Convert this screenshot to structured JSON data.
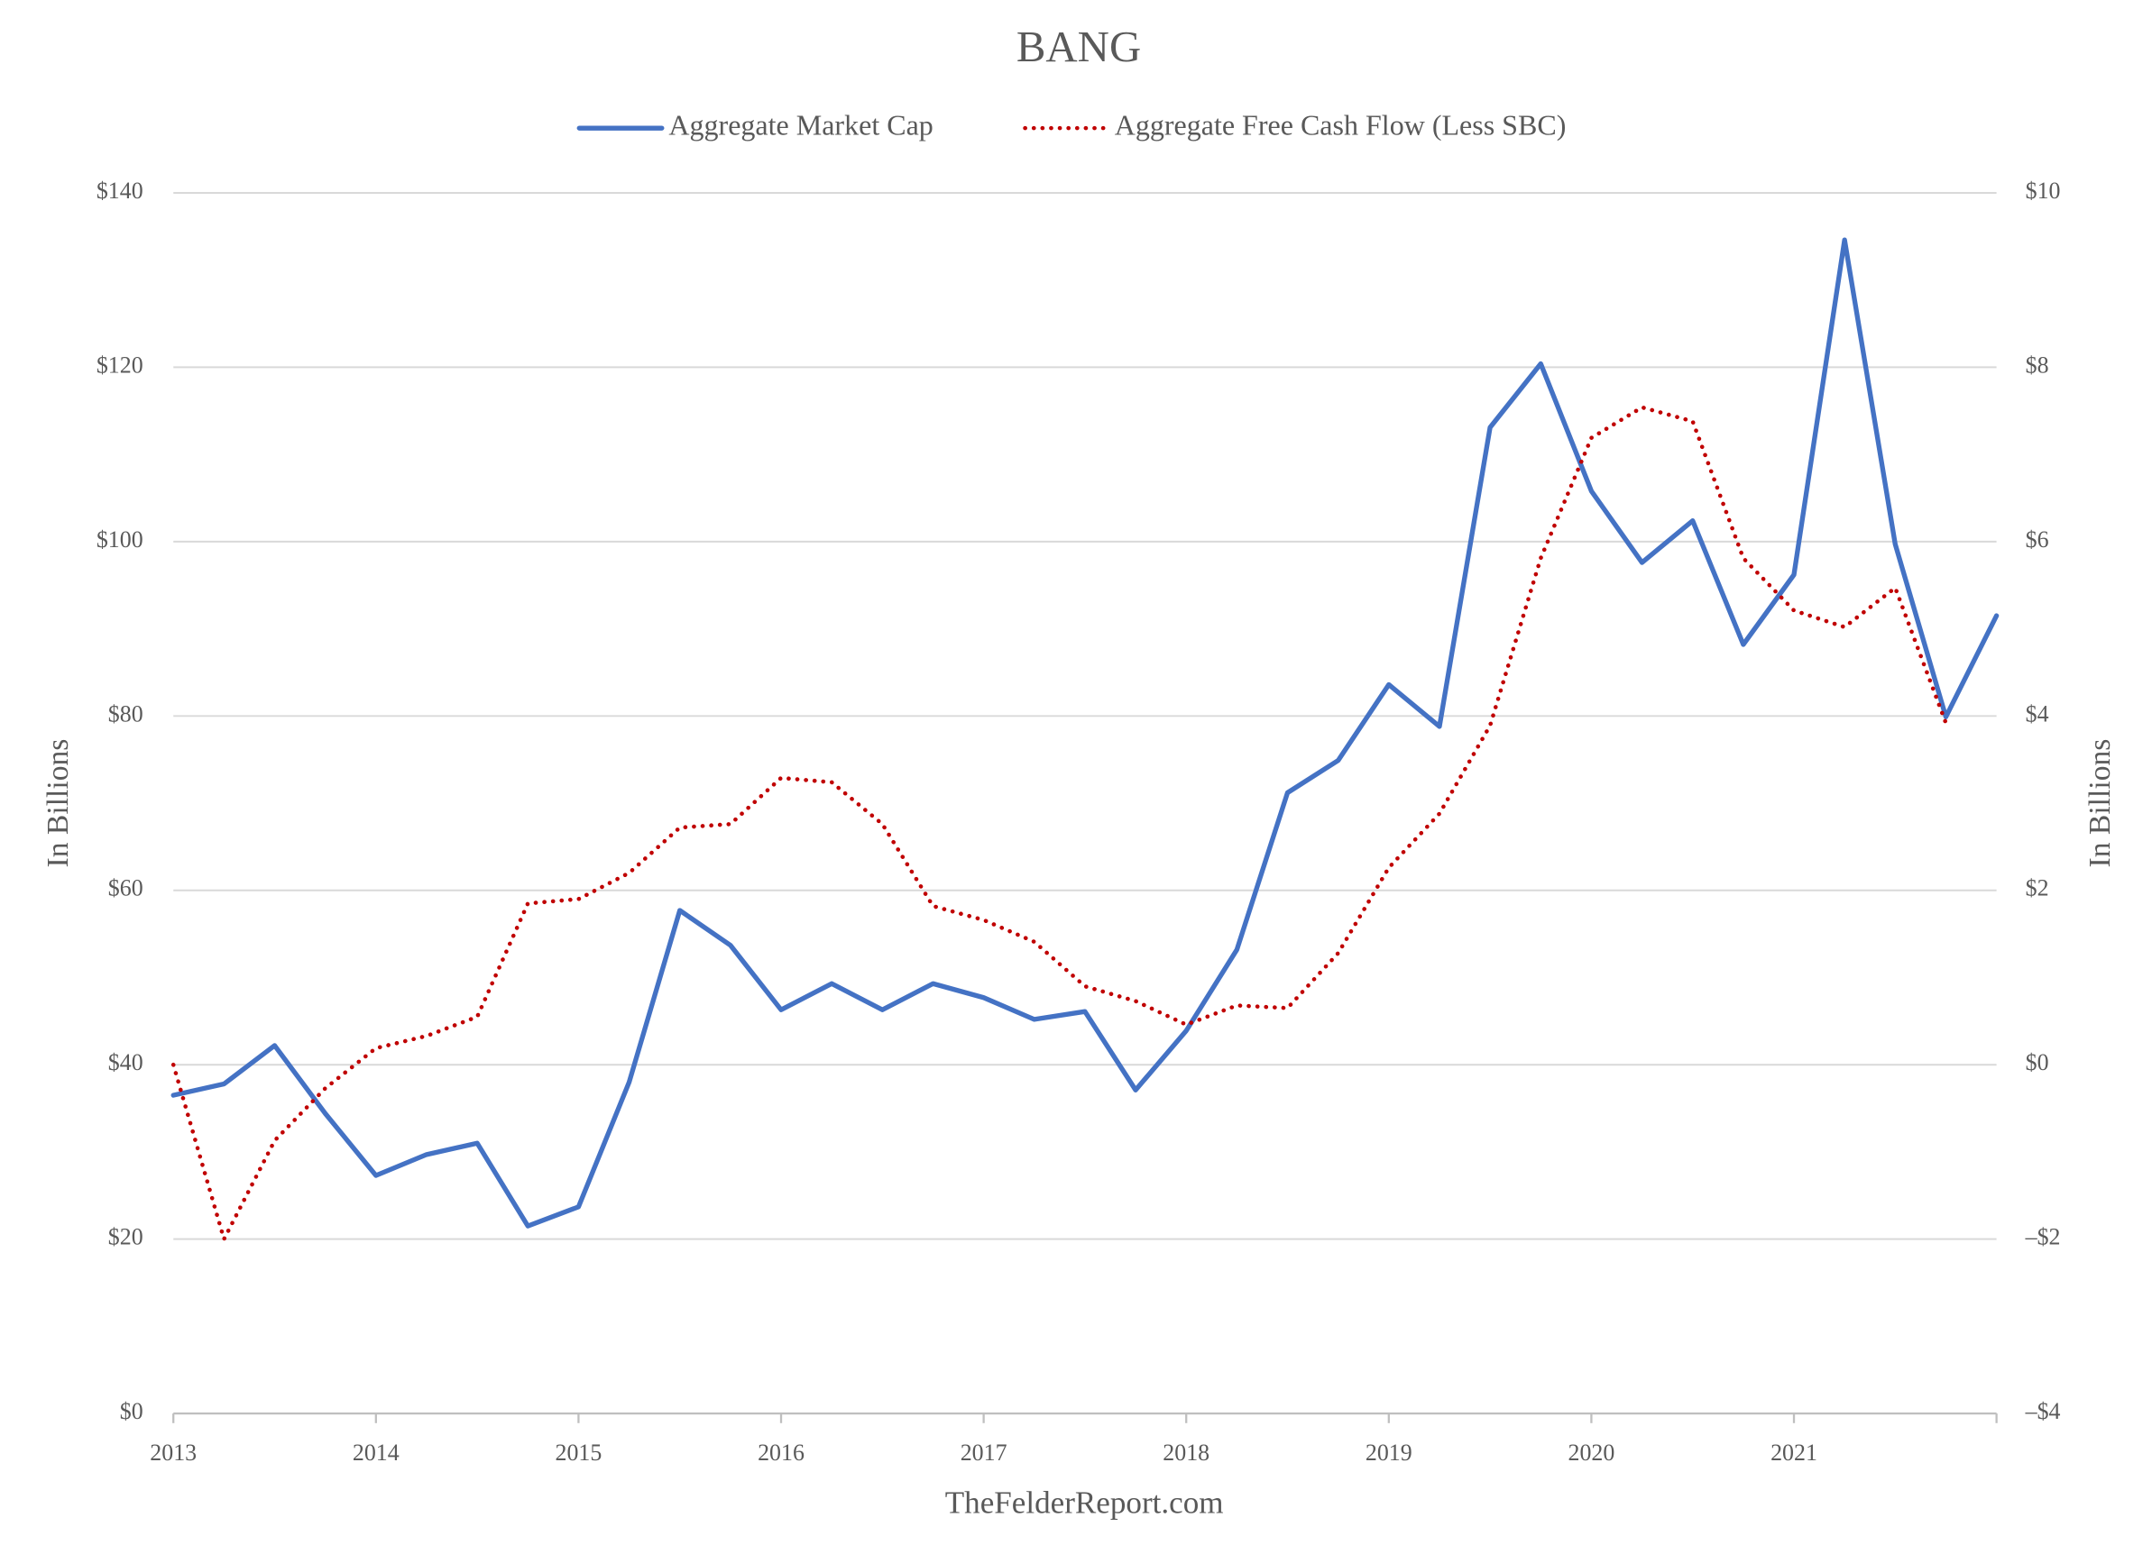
{
  "chart_data": {
    "type": "line",
    "title": "BANG",
    "ylabel": "In Billions",
    "y2label": "In Billions",
    "source": "TheFelderReport.com",
    "x": [
      2013,
      2013.25,
      2013.5,
      2013.75,
      2014,
      2014.25,
      2014.5,
      2014.75,
      2015,
      2015.25,
      2015.5,
      2015.75,
      2016,
      2016.25,
      2016.5,
      2016.75,
      2017,
      2017.25,
      2017.5,
      2017.75,
      2018,
      2018.25,
      2018.5,
      2018.75,
      2019,
      2019.25,
      2019.5,
      2019.75,
      2020,
      2020.25,
      2020.5,
      2020.75,
      2021,
      2021.25,
      2021.5,
      2021.75,
      2022
    ],
    "xlim": [
      2013,
      2022
    ],
    "xticks": [
      2013,
      2014,
      2015,
      2016,
      2017,
      2018,
      2019,
      2020,
      2021
    ],
    "ylim": [
      0,
      140
    ],
    "yticks": [
      {
        "value": 0,
        "label": "$0"
      },
      {
        "value": 20,
        "label": "$20"
      },
      {
        "value": 40,
        "label": "$40"
      },
      {
        "value": 60,
        "label": "$60"
      },
      {
        "value": 80,
        "label": "$80"
      },
      {
        "value": 100,
        "label": "$100"
      },
      {
        "value": 120,
        "label": "$120"
      },
      {
        "value": 140,
        "label": "$140"
      }
    ],
    "y2lim": [
      -4,
      10
    ],
    "y2ticks": [
      {
        "value": -4,
        "label": "–$4"
      },
      {
        "value": -2,
        "label": "–$2"
      },
      {
        "value": 0,
        "label": "$0"
      },
      {
        "value": 2,
        "label": "$2"
      },
      {
        "value": 4,
        "label": "$4"
      },
      {
        "value": 6,
        "label": "$6"
      },
      {
        "value": 8,
        "label": "$8"
      },
      {
        "value": 10,
        "label": "$10"
      }
    ],
    "grid": true,
    "legend": "top",
    "series": [
      {
        "name": "Aggregate Market Cap",
        "color": "#4472c4",
        "style": "solid",
        "values": [
          36.5,
          37.8,
          42.2,
          34.4,
          27.3,
          29.7,
          31,
          21.5,
          23.7,
          38,
          57.7,
          53.7,
          46.3,
          49.3,
          46.3,
          49.3,
          47.7,
          45.2,
          46.1,
          37.1,
          43.9,
          53.2,
          71.2,
          74.9,
          83.6,
          78.8,
          113.1,
          120.4,
          105.8,
          97.6,
          102.4,
          88.2,
          96.2,
          134.6,
          99.7,
          79.9,
          91.5
        ]
      },
      {
        "name": "Aggregate Free Cash Flow (Less SBC)",
        "color": "#c00000",
        "style": "dotted",
        "axis": "y2",
        "values": [
          0,
          -2,
          -0.87,
          -0.27,
          0.19,
          0.33,
          0.55,
          1.85,
          1.9,
          2.2,
          2.72,
          2.76,
          3.29,
          3.24,
          2.76,
          1.82,
          1.66,
          1.41,
          0.9,
          0.73,
          0.46,
          0.68,
          0.65,
          1.28,
          2.26,
          2.88,
          3.89,
          5.81,
          7.19,
          7.54,
          7.38,
          5.81,
          5.21,
          5.02,
          5.47,
          3.92,
          null
        ]
      }
    ]
  }
}
